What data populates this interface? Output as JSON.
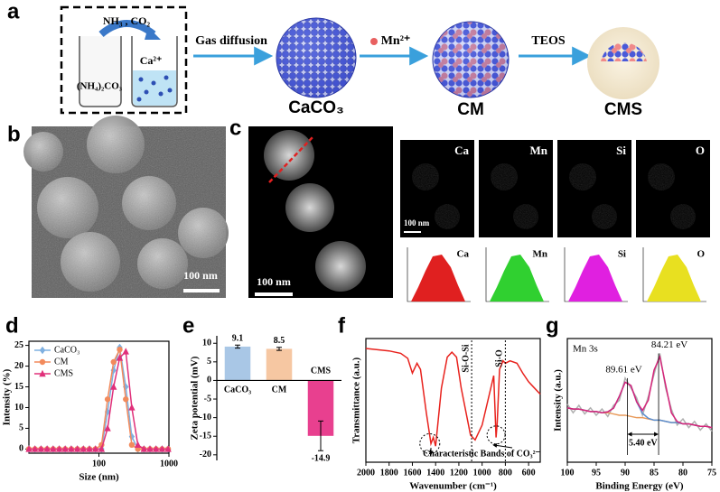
{
  "panel_labels": [
    "a",
    "b",
    "c",
    "d",
    "e",
    "f",
    "g"
  ],
  "scheme": {
    "reagents": "NH₃ , CO₂",
    "salt": "(NH₄)₂CO₃",
    "ion": "Ca²⁺",
    "steps": [
      "Gas diffusion",
      "Mn²⁺",
      "TEOS"
    ],
    "products": [
      "CaCO₃",
      "CM",
      "CMS"
    ]
  },
  "micrographs": {
    "scale_bars": [
      "100 nm",
      "100 nm",
      "100 nm"
    ],
    "elements": [
      "Ca",
      "Mn",
      "Si",
      "O"
    ]
  },
  "chart_data": [
    {
      "type": "line",
      "xlabel": "Size (nm)",
      "ylabel": "Intensity (%)",
      "xscale": "log",
      "xlim": [
        10,
        1000
      ],
      "xticks": [
        100,
        1000
      ],
      "ylim": [
        -1,
        26
      ],
      "yticks": [
        0,
        5,
        10,
        15,
        20,
        25
      ],
      "legend": "upper left",
      "x": [
        10,
        12.2,
        14.9,
        18.2,
        22.2,
        27.1,
        33,
        40.3,
        49.2,
        60,
        73.2,
        89.3,
        109,
        133,
        162,
        198,
        242,
        295,
        360,
        439,
        536,
        654,
        798,
        974
      ],
      "series": [
        {
          "name": "CaCO₃",
          "color": "#7fb0e0",
          "marker": "diamond",
          "values": [
            0,
            0,
            0,
            0,
            0,
            0,
            0,
            0,
            0,
            0,
            0,
            0,
            0,
            9,
            19,
            24.5,
            15,
            3,
            0,
            0,
            0,
            0,
            0,
            0
          ]
        },
        {
          "name": "CM",
          "color": "#f28a5c",
          "marker": "circle",
          "values": [
            0,
            0,
            0,
            0,
            0,
            0,
            0,
            0,
            0,
            0,
            0,
            0,
            1,
            12,
            21,
            24,
            12,
            1,
            0,
            0,
            0,
            0,
            0,
            0
          ]
        },
        {
          "name": "CMS",
          "color": "#e0307a",
          "marker": "triangle",
          "values": [
            0,
            0,
            0,
            0,
            0,
            0,
            0,
            0,
            0,
            0,
            0,
            0,
            0,
            5,
            15,
            22,
            23.5,
            10,
            1,
            0,
            0,
            0,
            0,
            0
          ]
        }
      ]
    },
    {
      "type": "bar",
      "ylabel": "Zeta potential (mV)",
      "ylim": [
        -21.5,
        12
      ],
      "yticks": [
        10,
        5,
        0,
        -5,
        -10,
        -15,
        -20
      ],
      "categories": [
        "CaCO₃",
        "CM",
        "CMS"
      ],
      "values": [
        9.1,
        8.5,
        -14.9
      ],
      "errors": [
        0.4,
        0.4,
        4
      ],
      "colors": [
        "#a9c7e6",
        "#f6c7a2",
        "#e8408f"
      ]
    },
    {
      "type": "line",
      "xlabel": "Wavenumber (cm⁻¹)",
      "ylabel": "Transmittance (a.u.)",
      "xlim": [
        2000,
        500
      ],
      "xticks": [
        2000,
        1800,
        1600,
        1400,
        1200,
        1000,
        800,
        600
      ],
      "ylim": [
        0,
        100
      ],
      "x": [
        2000,
        1900,
        1800,
        1700,
        1640,
        1600,
        1560,
        1530,
        1480,
        1440,
        1420,
        1400,
        1350,
        1300,
        1260,
        1220,
        1180,
        1100,
        1060,
        1000,
        950,
        900,
        880,
        870,
        850,
        820,
        800,
        760,
        700,
        650,
        600,
        550,
        500
      ],
      "series": [
        {
          "color": "#e8221d",
          "values": [
            92,
            91,
            90,
            88,
            84,
            72,
            80,
            75,
            40,
            15,
            20,
            13,
            60,
            85,
            89,
            85,
            60,
            22,
            18,
            30,
            50,
            70,
            20,
            32,
            75,
            82,
            80,
            82,
            80,
            72,
            65,
            60,
            55
          ]
        }
      ],
      "reference_lines": [
        {
          "value": 1090,
          "label": "Si-O-Si"
        },
        {
          "value": 800,
          "label": "Si-O"
        }
      ],
      "annotation": "Characteristic  Bands of CO₃²⁻"
    },
    {
      "type": "line",
      "xlabel": "Binding Energy (eV)",
      "ylabel": "Intensity (a.u.)",
      "annotation": "Mn 3s",
      "xlim": [
        100,
        75
      ],
      "xticks": [
        100,
        95,
        90,
        85,
        80,
        75
      ],
      "ylim": [
        0,
        100
      ],
      "x": [
        100,
        99,
        98,
        97,
        96,
        95,
        94,
        93,
        92,
        91,
        90,
        89,
        88,
        87,
        86,
        85,
        84,
        83,
        82,
        81,
        80,
        79,
        78,
        77,
        76,
        75
      ],
      "series": [
        {
          "color": "#b0b0b0",
          "values": [
            47,
            40,
            46,
            39,
            44,
            38,
            43,
            37,
            46,
            50,
            68,
            60,
            52,
            38,
            53,
            71,
            88,
            60,
            43,
            30,
            35,
            28,
            33,
            26,
            31,
            25
          ]
        },
        {
          "color": "#e89a5a",
          "values": [
            44,
            43,
            43,
            42,
            41,
            41,
            40,
            40,
            39,
            38,
            38,
            37,
            36,
            36,
            35,
            34,
            34,
            33,
            32,
            32,
            31,
            31,
            30,
            29,
            29,
            28
          ]
        },
        {
          "color": "#5b8fd0",
          "values": [
            44,
            43,
            43,
            42,
            41,
            41,
            40,
            40.8,
            43.7,
            53.3,
            64.7,
            62,
            48.7,
            39.5,
            35.5,
            34,
            34,
            33,
            32,
            32,
            31,
            31,
            30,
            29,
            29,
            28
          ]
        },
        {
          "color": "#d6247a",
          "values": [
            44,
            43,
            43,
            42,
            41,
            41,
            40,
            40.8,
            43.7,
            53.3,
            64.7,
            62,
            48.7,
            41.9,
            50.1,
            74.5,
            85.2,
            62.6,
            39.9,
            32.9,
            31,
            31,
            30,
            29,
            29,
            28
          ]
        }
      ],
      "peaks": [
        {
          "value": 89.61,
          "label": "89.61 eV"
        },
        {
          "value": 84.21,
          "label": "84.21 eV"
        }
      ],
      "splitting": {
        "value": 5.4,
        "label": "5.40 eV"
      }
    }
  ]
}
